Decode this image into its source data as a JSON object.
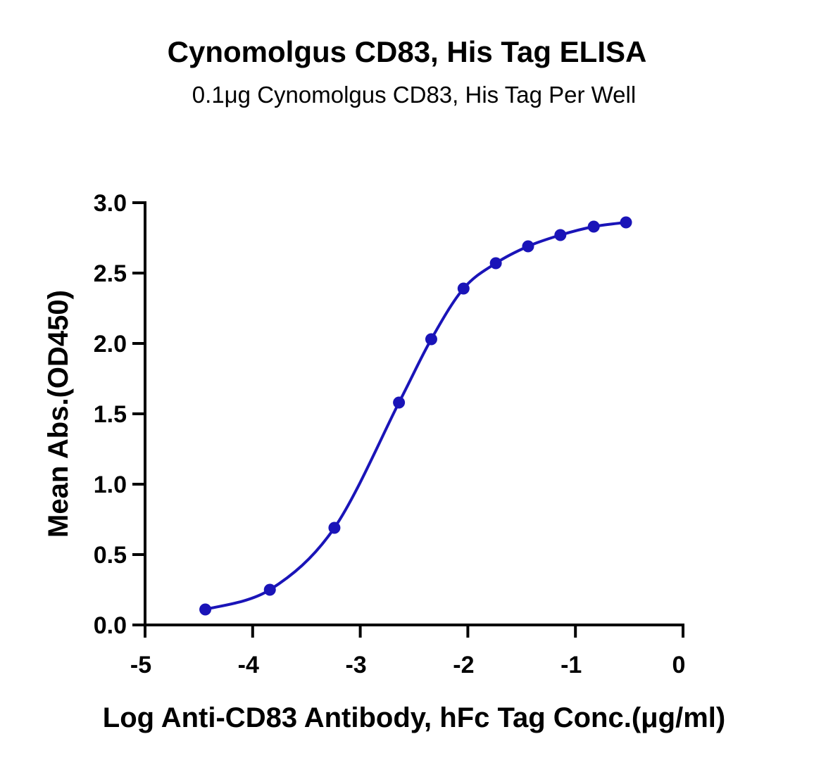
{
  "chart_data": {
    "type": "scatter",
    "title": "Cynomolgus CD83, His Tag ELISA",
    "subtitle": "0.1μg Cynomolgus CD83, His Tag Per Well",
    "xlabel": "Log Anti-CD83 Antibody, hFc Tag Conc.(μg/ml)",
    "ylabel": "Mean Abs.(OD450)",
    "xlim": [
      -5,
      0
    ],
    "ylim": [
      0,
      3.0
    ],
    "x_ticks": [
      -5,
      -4,
      -3,
      -2,
      -1,
      0
    ],
    "x_tick_labels": [
      "-5",
      "-4",
      "-3",
      "-2",
      "-1",
      "0"
    ],
    "y_ticks": [
      0,
      0.5,
      1.0,
      1.5,
      2.0,
      2.5,
      3.0
    ],
    "y_tick_labels": [
      "0.0",
      "0.5",
      "1.0",
      "1.5",
      "2.0",
      "2.5",
      "3.0"
    ],
    "grid": false,
    "series": [
      {
        "color": "#1a14b8",
        "x": [
          -4.44,
          -3.84,
          -3.24,
          -2.64,
          -2.34,
          -2.04,
          -1.74,
          -1.44,
          -1.14,
          -0.83,
          -0.53
        ],
        "y": [
          0.11,
          0.25,
          0.69,
          1.58,
          2.03,
          2.39,
          2.57,
          2.69,
          2.77,
          2.83,
          2.86
        ],
        "fit": "4PL sigmoid curve"
      }
    ]
  }
}
